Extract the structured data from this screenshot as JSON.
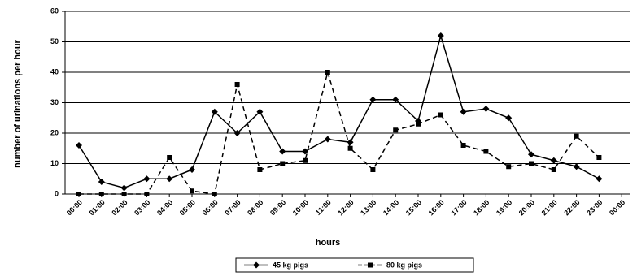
{
  "chart_data": {
    "type": "line",
    "x_label": "hours",
    "y_label": "number of urinations per hour",
    "categories": [
      "00:00",
      "01:00",
      "02:00",
      "03:00",
      "04:00",
      "05:00",
      "06:00",
      "07:00",
      "08:00",
      "09:00",
      "10:00",
      "11:00",
      "12:00",
      "13:00",
      "14:00",
      "15:00",
      "16:00",
      "17:00",
      "18:00",
      "19:00",
      "20:00",
      "21:00",
      "22:00",
      "23:00",
      "00:00"
    ],
    "series": [
      {
        "name": "45 kg pigs",
        "color": "#000000",
        "line_style": "solid",
        "marker": "diamond",
        "values": [
          16,
          4,
          2,
          5,
          5,
          8,
          27,
          20,
          27,
          14,
          14,
          18,
          17,
          31,
          31,
          24,
          52,
          27,
          28,
          25,
          13,
          11,
          9,
          5,
          null
        ]
      },
      {
        "name": "80 kg pigs",
        "color": "#000000",
        "line_style": "dashed",
        "marker": "square",
        "values": [
          0,
          0,
          0,
          0,
          12,
          1,
          0,
          36,
          8,
          10,
          11,
          40,
          15,
          8,
          21,
          23,
          26,
          16,
          14,
          9,
          10,
          8,
          19,
          12,
          null
        ]
      }
    ],
    "ylim": [
      0,
      60
    ],
    "yticks": [
      0,
      10,
      20,
      30,
      40,
      50,
      60
    ],
    "grid": true,
    "legend": "bottom"
  }
}
